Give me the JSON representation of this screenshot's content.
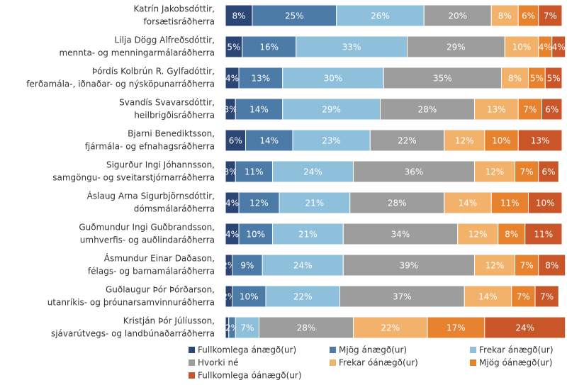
{
  "chart_data": {
    "type": "stacked-bar-horizontal",
    "categories": [
      [
        "Katrín Jakobsdóttir,",
        "forsætisráðherra"
      ],
      [
        "Lilja Dögg Alfreðsdóttir,",
        "mennta- og menningarmálaráðherra"
      ],
      [
        "Þórdís Kolbrún R. Gylfadóttir,",
        "ferðamála-, iðnaðar- og nýsköpunarráðherra"
      ],
      [
        "Svandís Svavarsdóttir,",
        "heilbrigðisráðherra"
      ],
      [
        "Bjarni Benediktsson,",
        "fjármála- og efnahagsráðherra"
      ],
      [
        "Sigurður Ingi Jóhannsson,",
        "samgöngu- og sveitarstjórnarráðherra"
      ],
      [
        "Áslaug Arna Sigurbjörnsdóttir,",
        "dómsmálaráðherra"
      ],
      [
        "Guðmundur Ingi Guðbrandsson,",
        "umhverfis- og auðlindaráðherra"
      ],
      [
        "Ásmundur Einar Daðason,",
        "félags- og barnamálaráðherra"
      ],
      [
        "Guðlaugur Þór Þórðarson,",
        "utanríkis- og þróunarsamvinnuráðherra"
      ],
      [
        "Kristján Þór Júlíusson,",
        "sjávarútvegs- og landbúnaðarráðherra"
      ]
    ],
    "series": [
      {
        "name": "Fullkomlega ánægð(ur)",
        "color": "#2b4674",
        "values": [
          8,
          5,
          4,
          3,
          6,
          3,
          4,
          4,
          2,
          2,
          1
        ],
        "value_labels": [
          "8%",
          "5%",
          "4%",
          "3%",
          "6%",
          "3%",
          "4%",
          "4%",
          "2%",
          "2%",
          null
        ]
      },
      {
        "name": "Mjög ánægð(ur)",
        "color": "#4b7ba6",
        "values": [
          25,
          16,
          13,
          14,
          14,
          11,
          12,
          10,
          9,
          10,
          2
        ],
        "value_labels": [
          "25%",
          "16%",
          "13%",
          "14%",
          "14%",
          "11%",
          "12%",
          "10%",
          "9%",
          "10%",
          "2%"
        ]
      },
      {
        "name": "Frekar ánægð(ur)",
        "color": "#8ec0dc",
        "values": [
          26,
          33,
          30,
          29,
          23,
          24,
          21,
          21,
          24,
          22,
          7
        ],
        "value_labels": [
          "26%",
          "33%",
          "30%",
          "29%",
          "23%",
          "24%",
          "21%",
          "21%",
          "24%",
          "22%",
          "7%"
        ]
      },
      {
        "name": "Hvorki né",
        "color": "#9d9d9d",
        "values": [
          20,
          29,
          35,
          28,
          22,
          36,
          28,
          34,
          39,
          37,
          28
        ],
        "value_labels": [
          "20%",
          "29%",
          "35%",
          "28%",
          "22%",
          "36%",
          "28%",
          "34%",
          "39%",
          "37%",
          "28%"
        ]
      },
      {
        "name": "Frekar óánægð(ur)",
        "color": "#f3b26b",
        "values": [
          8,
          10,
          8,
          13,
          12,
          12,
          14,
          12,
          12,
          14,
          22
        ],
        "value_labels": [
          "8%",
          "10%",
          "8%",
          "13%",
          "12%",
          "12%",
          "14%",
          "12%",
          "12%",
          "14%",
          "22%"
        ]
      },
      {
        "name": "Mjög óánægð(ur)",
        "color": "#e7822f",
        "values": [
          6,
          4,
          5,
          7,
          10,
          7,
          11,
          8,
          7,
          7,
          17
        ],
        "value_labels": [
          "6%",
          "4%",
          "5%",
          "7%",
          "10%",
          "7%",
          "11%",
          "8%",
          "7%",
          "7%",
          "17%"
        ]
      },
      {
        "name": "Fullkomlega óánægð(ur)",
        "color": "#c85629",
        "values": [
          7,
          4,
          5,
          6,
          13,
          6,
          10,
          11,
          8,
          7,
          24
        ],
        "value_labels": [
          "7%",
          "4%",
          "5%",
          "6%",
          "13%",
          "6%",
          "10%",
          "11%",
          "8%",
          "7%",
          "24%"
        ]
      }
    ]
  }
}
